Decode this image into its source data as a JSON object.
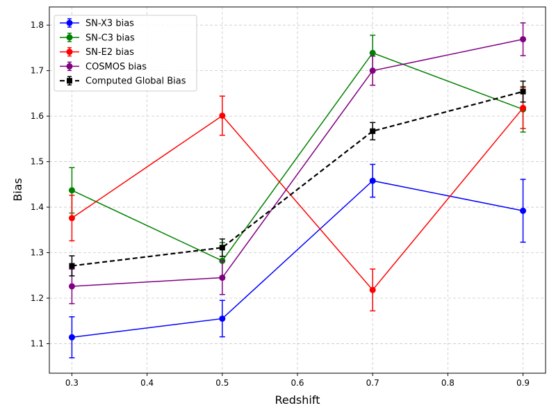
{
  "chart_data": {
    "type": "line",
    "title": "",
    "xlabel": "Redshift",
    "ylabel": "Bias",
    "xlim": [
      0.27,
      0.93
    ],
    "ylim": [
      1.035,
      1.84
    ],
    "x_ticks": [
      0.3,
      0.4,
      0.5,
      0.6,
      0.7,
      0.8,
      0.9
    ],
    "x_tick_labels": [
      "0.3",
      "0.4",
      "0.5",
      "0.6",
      "0.7",
      "0.8",
      "0.9"
    ],
    "y_ticks": [
      1.1,
      1.2,
      1.3,
      1.4,
      1.5,
      1.6,
      1.7,
      1.8
    ],
    "y_tick_labels": [
      "1.1",
      "1.2",
      "1.3",
      "1.4",
      "1.5",
      "1.6",
      "1.7",
      "1.8"
    ],
    "grid": true,
    "legend_position": "top-left",
    "x": [
      0.3,
      0.5,
      0.7,
      0.9
    ],
    "series": [
      {
        "name": "SN-X3 bias",
        "color": "#0000ff",
        "marker": "circle",
        "dashed": false,
        "values": [
          1.114,
          1.155,
          1.458,
          1.392
        ],
        "errors": [
          0.045,
          0.04,
          0.036,
          0.069
        ]
      },
      {
        "name": "SN-C3 bias",
        "color": "#008000",
        "marker": "circle",
        "dashed": false,
        "values": [
          1.437,
          1.282,
          1.739,
          1.615
        ],
        "errors": [
          0.05,
          0.04,
          0.039,
          0.05
        ]
      },
      {
        "name": "SN-E2 bias",
        "color": "#ff0000",
        "marker": "circle",
        "dashed": false,
        "values": [
          1.376,
          1.601,
          1.218,
          1.618
        ],
        "errors": [
          0.05,
          0.043,
          0.046,
          0.045
        ]
      },
      {
        "name": "COSMOS bias",
        "color": "#800080",
        "marker": "circle",
        "dashed": false,
        "values": [
          1.226,
          1.245,
          1.7,
          1.769
        ],
        "errors": [
          0.038,
          0.037,
          0.032,
          0.036
        ]
      },
      {
        "name": "Computed Global Bias",
        "color": "#000000",
        "marker": "square",
        "dashed": true,
        "values": [
          1.271,
          1.311,
          1.567,
          1.654
        ],
        "errors": [
          0.022,
          0.019,
          0.019,
          0.023
        ]
      }
    ]
  }
}
